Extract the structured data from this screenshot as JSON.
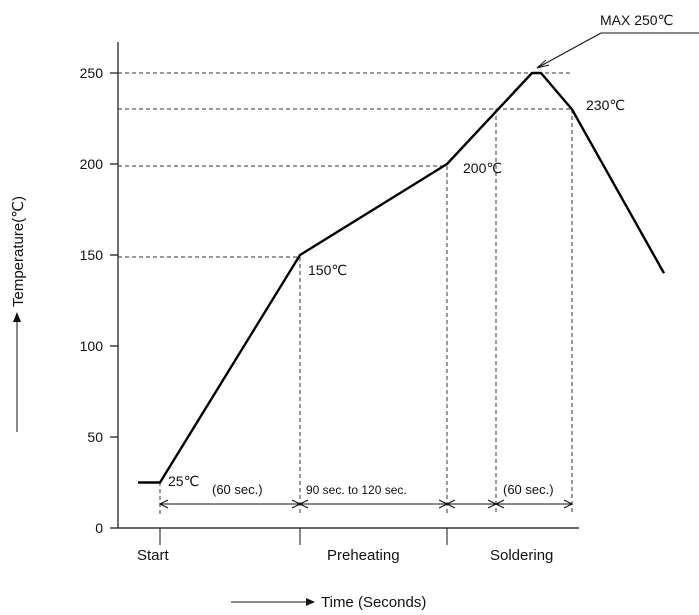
{
  "chart_data": {
    "type": "line",
    "xlabel": "Time (Seconds)",
    "ylabel": "Temperature(℃)",
    "ylim": [
      0,
      250
    ],
    "yticks": [
      0,
      50,
      100,
      150,
      200,
      250
    ],
    "grid": false,
    "phases": [
      "Start",
      "Preheating",
      "Soldering"
    ],
    "durations": [
      "(60 sec.)",
      "90 sec. to 120 sec.",
      "(60 sec.)"
    ],
    "points": [
      {
        "label": "",
        "y": 25
      },
      {
        "label": "25℃",
        "y": 25
      },
      {
        "label": "150℃",
        "y": 150
      },
      {
        "label": "200℃",
        "y": 200
      },
      {
        "label": "",
        "y": 250
      },
      {
        "label": "MAX 250℃",
        "y": 250
      },
      {
        "label": "230℃",
        "y": 230
      },
      {
        "label": "",
        "y": 140
      }
    ]
  },
  "temperature_labels": {
    "t25": "25℃",
    "t150": "150℃",
    "t200": "200℃",
    "t230": "230℃",
    "max": "MAX 250℃"
  }
}
